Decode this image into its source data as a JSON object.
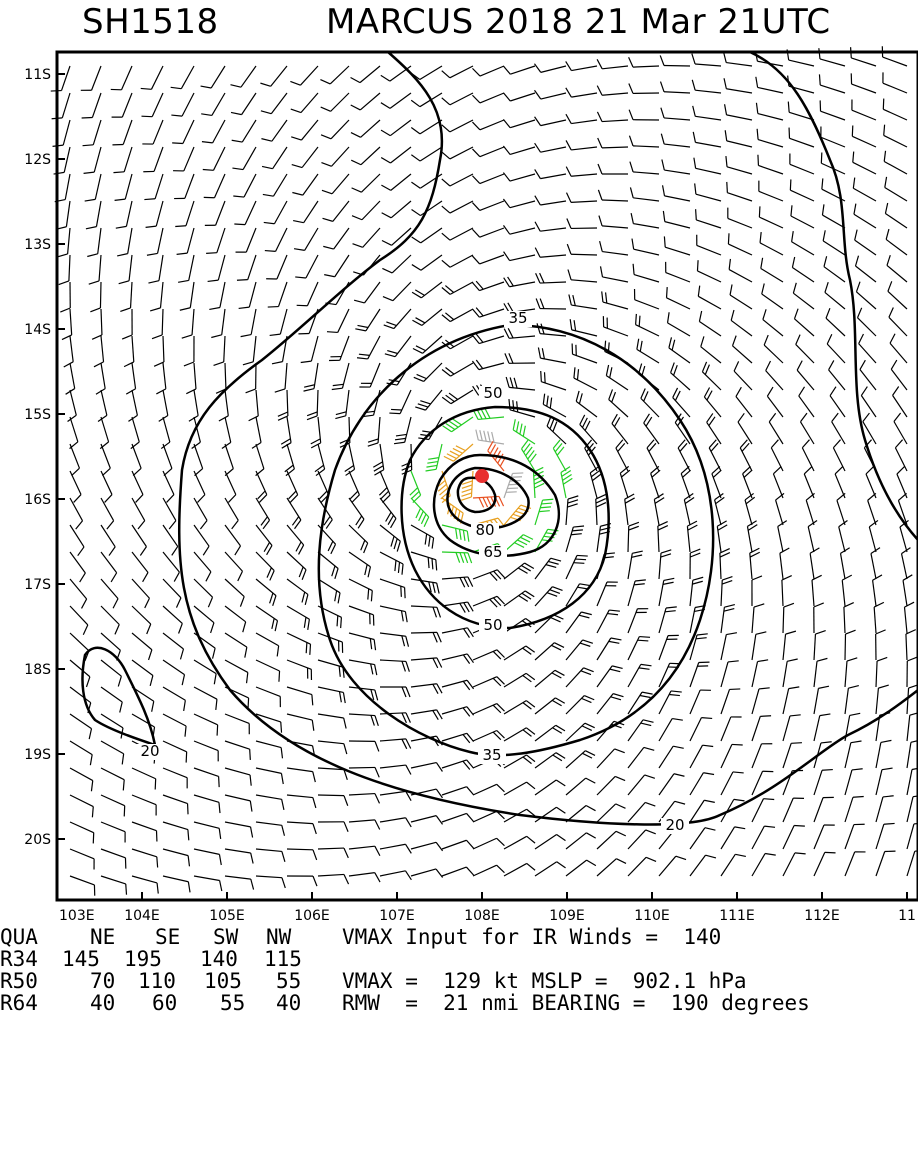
{
  "header": {
    "storm_id": "SH1518",
    "storm_title": "MARCUS 2018 21 Mar 21UTC"
  },
  "chart_data": {
    "type": "wind-field-map",
    "title": "MARCUS 2018 21 Mar 21UTC",
    "x_ticks": [
      "103E",
      "104E",
      "105E",
      "106E",
      "107E",
      "108E",
      "109E",
      "110E",
      "111E",
      "112E",
      "11"
    ],
    "y_ticks": [
      "11S",
      "12S",
      "13S",
      "14S",
      "15S",
      "16S",
      "17S",
      "18S",
      "19S",
      "20S"
    ],
    "lon_range": [
      103,
      113.4
    ],
    "lat_range": [
      -10.7,
      -20.7
    ],
    "center": {
      "lon": 108.0,
      "lat": -15.73
    },
    "contour_levels": [
      20,
      35,
      50,
      65,
      80
    ],
    "contour_labels": [
      "20",
      "35",
      "50",
      "65",
      "80",
      "20",
      "35",
      "50"
    ],
    "wind_colors": {
      "below34": "#000000",
      "r34": "#22cc22",
      "r50": "#e8a020",
      "r64": "#e85020",
      "core": "#aaaaaa",
      "center": "#e83030"
    }
  },
  "table": {
    "header": [
      "QUA",
      "NE",
      "SE",
      "SW",
      "NW"
    ],
    "rows": [
      [
        "R34",
        "145",
        "195",
        "140",
        "115"
      ],
      [
        "R50",
        "70",
        "110",
        "105",
        "55"
      ],
      [
        "R64",
        "40",
        "60",
        "55",
        "40"
      ]
    ],
    "info": [
      "VMAX Input for IR Winds =  140",
      "",
      "VMAX =  129 kt MSLP =  902.1 hPa",
      "RMW  =  21 nmi BEARING =  190 degrees"
    ]
  }
}
